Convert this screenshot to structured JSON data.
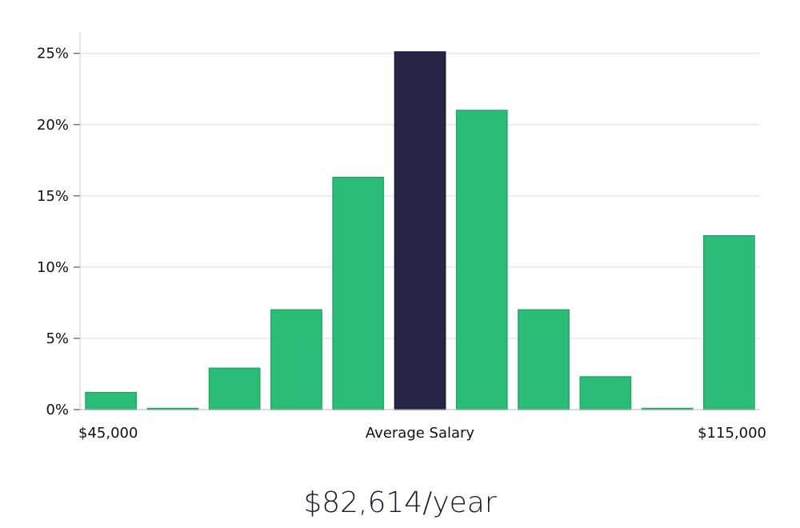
{
  "chart_data": {
    "type": "bar",
    "title": "",
    "xlabel": "Average Salary",
    "ylabel": "",
    "ylim": [
      0,
      26.5
    ],
    "y_ticks": [
      0,
      5,
      10,
      15,
      20,
      25
    ],
    "y_tick_labels": [
      "0%",
      "5%",
      "10%",
      "15%",
      "20%",
      "25%"
    ],
    "x_tick_labels": {
      "left": "$45,000",
      "center": "Average Salary",
      "right": "$115,000"
    },
    "values": [
      1.2,
      0.05,
      2.9,
      7.0,
      16.3,
      25.1,
      21.0,
      7.0,
      2.3,
      0.05,
      12.2
    ],
    "highlight_index": 5,
    "grid": true,
    "colors": {
      "bar": "#2bbd77",
      "bar_stroke": "#22a866",
      "highlight": "#272546",
      "highlight_stroke": "#1d1b3a",
      "grid": "#dddddd",
      "axis": "#cccccc"
    }
  },
  "summary": {
    "salary": "$82,614/year"
  }
}
